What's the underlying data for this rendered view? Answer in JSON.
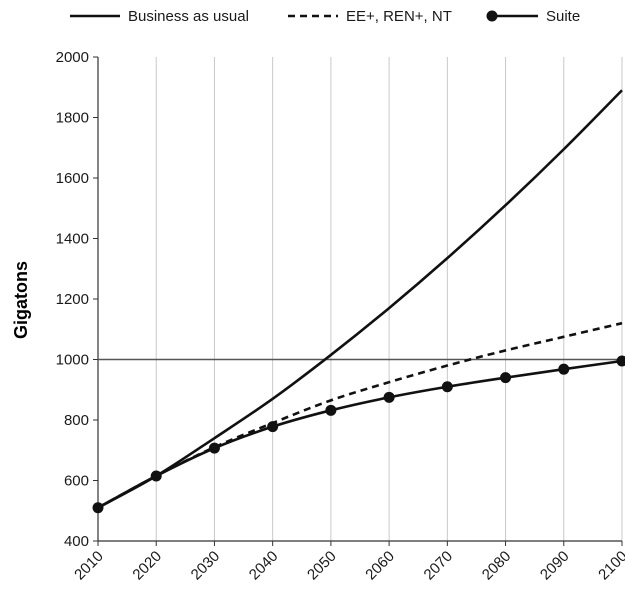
{
  "chart_data": {
    "type": "line",
    "title": "",
    "xlabel": "",
    "ylabel": "Gigatons",
    "x": [
      2010,
      2020,
      2030,
      2040,
      2050,
      2060,
      2070,
      2080,
      2090,
      2100
    ],
    "xlim": [
      2010,
      2100
    ],
    "ylim": [
      400,
      2000
    ],
    "yticks": [
      400,
      600,
      800,
      1000,
      1200,
      1400,
      1600,
      1800,
      2000
    ],
    "grid": "vertical",
    "legend_position": "top",
    "reference_line": 1000,
    "series": [
      {
        "name": "Business as usual",
        "style": "solid",
        "markers": false,
        "values": [
          510,
          615,
          740,
          870,
          1015,
          1170,
          1335,
          1510,
          1695,
          1890
        ]
      },
      {
        "name": "EE+, REN+, NT",
        "style": "dashed",
        "markers": false,
        "values": [
          510,
          615,
          710,
          790,
          865,
          925,
          980,
          1030,
          1075,
          1120
        ]
      },
      {
        "name": "Suite",
        "style": "solid",
        "markers": true,
        "values": [
          510,
          615,
          707,
          778,
          832,
          875,
          910,
          940,
          968,
          995
        ]
      }
    ]
  },
  "colors": {
    "line": "#111111",
    "grid": "#c8c8c8",
    "axis": "#333333",
    "reference": "#555555"
  }
}
